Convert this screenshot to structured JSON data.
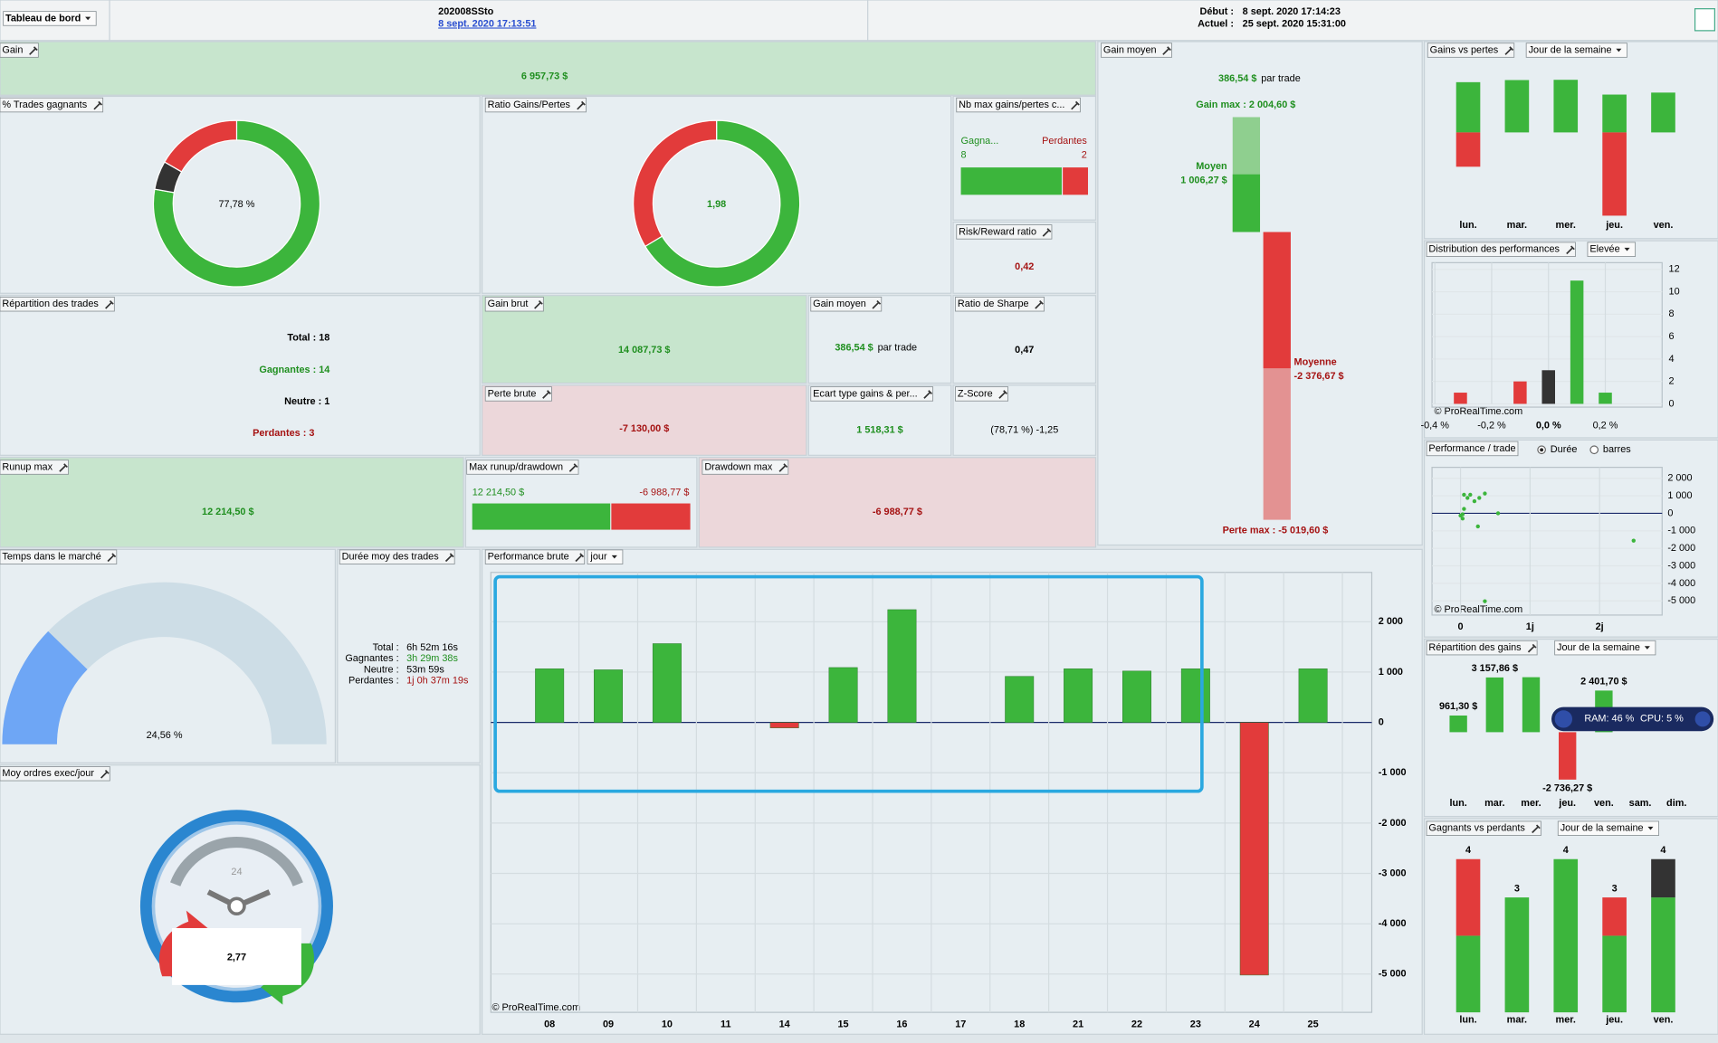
{
  "toolbar": {
    "menu": "Tableau de bord",
    "name": "202008SSto",
    "date_link": "8 sept. 2020 17:13:51",
    "debut_label": "Début :",
    "debut": "8 sept. 2020 17:14:23",
    "actuel_label": "Actuel :",
    "actuel": "25 sept. 2020 15:31:00"
  },
  "gain": {
    "title": "Gain",
    "value": "6 957,73 $"
  },
  "win_rate": {
    "title": "% Trades gagnants",
    "label": "77,78 %",
    "values": [
      77.78,
      5.56,
      16.67
    ],
    "colors": [
      "#3cb53c",
      "#333333",
      "#e23b3b"
    ]
  },
  "ratio": {
    "title": "Ratio Gains/Pertes",
    "label": "1,98",
    "values": [
      66.4,
      33.6
    ],
    "colors": [
      "#3cb53c",
      "#e23b3b"
    ]
  },
  "max_consecutive": {
    "title": "Nb max gains/pertes c...",
    "win_label": "Gagna...",
    "loss_label": "Perdantes",
    "values": [
      8,
      2
    ],
    "colors": [
      "#3cb53c",
      "#e23b3b"
    ]
  },
  "risk_reward": {
    "title": "Risk/Reward ratio",
    "value": "0,42"
  },
  "avg_gain_panel": {
    "title": "Gain moyen",
    "value": "386,54 $",
    "unit": "par trade",
    "max_gain_label": "Gain max : 2 004,60 $",
    "avg_win_title": "Moyen",
    "avg_win_label": "1 006,27 $",
    "avg_loss_title": "Moyenne",
    "avg_loss_label": "-2 376,67 $",
    "max_loss_label": "Perte max : -5 019,60 $",
    "max_gain": 2004.6,
    "avg_win": 1006.27,
    "avg_loss": -2376.67,
    "max_loss": -5019.6
  },
  "gains_vs_losses": {
    "title": "Gains vs pertes",
    "period": "Jour de la semaine",
    "categories": [
      "lun.",
      "mar.",
      "mer.",
      "jeu.",
      "ven."
    ],
    "gains": [
      3030,
      3158,
      3173,
      2283,
      2402
    ],
    "losses": [
      -2069,
      0,
      0,
      -5020,
      0
    ]
  },
  "trades_breakdown": {
    "title": "Répartition des trades",
    "total": "Total : 18",
    "winners": "Gagnantes : 14",
    "neutral": "Neutre : 1",
    "losers": "Perdantes : 3"
  },
  "gross_gain": {
    "title": "Gain brut",
    "value": "14 087,73 $"
  },
  "avg_gain": {
    "title": "Gain moyen",
    "value": "386,54 $",
    "unit": "par trade"
  },
  "sharpe": {
    "title": "Ratio de Sharpe",
    "value": "0,47"
  },
  "gross_loss": {
    "title": "Perte brute",
    "value": "-7 130,00 $"
  },
  "std_dev": {
    "title": "Ecart type gains & per...",
    "value": "1 518,31 $"
  },
  "z_score": {
    "title": "Z-Score",
    "value": "(78,71 %) -1,25"
  },
  "runup": {
    "title": "Runup max",
    "value": "12 214,50 $"
  },
  "runup_drawdown": {
    "title": "Max runup/drawdown",
    "runup_label": "12 214,50 $",
    "drawdown_label": "-6 988,77 $",
    "runup": 12214.5,
    "drawdown": -6988.77
  },
  "drawdown": {
    "title": "Drawdown max",
    "value": "-6 988,77 $"
  },
  "time_in_market": {
    "title": "Temps dans le marché",
    "value": 24.56,
    "label": "24,56 %"
  },
  "avg_duration": {
    "title": "Durée moy des trades",
    "rows": [
      [
        "Total :",
        "6h 52m 16s"
      ],
      [
        "Gagnantes :",
        "3h 29m 38s"
      ],
      [
        "Neutre :",
        "53m 59s"
      ],
      [
        "Perdantes :",
        "1j 0h 37m 19s"
      ]
    ]
  },
  "orders_per_day": {
    "title": "Moy ordres exec/jour",
    "clock": "24",
    "value": "2,77"
  },
  "gross_performance": {
    "title": "Performance brute",
    "period": "jour",
    "watermark": "© ProRealTime.com",
    "chart": {
      "type": "bar",
      "categories": [
        "08",
        "09",
        "10",
        "11",
        "14",
        "15",
        "16",
        "17",
        "18",
        "21",
        "22",
        "23",
        "24",
        "25"
      ],
      "values": [
        1065,
        1045,
        1565,
        0,
        -110,
        1090,
        2240,
        0,
        915,
        1065,
        1020,
        1065,
        -5019.6,
        1065
      ],
      "colors": [
        "#3cb53c",
        "#e23b3b"
      ],
      "ylim": [
        -5760,
        2980
      ],
      "yticks": [
        {
          "value": -5000,
          "label": "-5 000"
        },
        {
          "value": -4000,
          "label": "-4 000"
        },
        {
          "value": -3000,
          "label": "-3 000"
        },
        {
          "value": -2000,
          "label": "-2 000"
        },
        {
          "value": -1000,
          "label": "-1 000"
        },
        0,
        {
          "value": 1000,
          "label": "1 000"
        },
        {
          "value": 2000,
          "label": "2 000"
        }
      ],
      "grid": true
    }
  },
  "distribution": {
    "title": "Distribution des performances",
    "level": "Elevée",
    "watermark": "© ProRealTime.com",
    "chart": {
      "type": "bar",
      "x": [
        -0.31,
        -0.1,
        0,
        0.1,
        0.2
      ],
      "values": [
        1,
        2,
        3,
        11,
        1
      ],
      "colors": [
        "#e23b3b",
        "#e23b3b",
        "#333333",
        "#3cb53c",
        "#3cb53c"
      ],
      "xlim": [
        -0.41,
        0.4
      ],
      "xticks": [
        {
          "value": -0.4,
          "label": "-0,4 %"
        },
        {
          "value": -0.2,
          "label": "-0,2 %"
        },
        {
          "value": 0,
          "label": "0,0 %"
        },
        {
          "value": 0.2,
          "label": "0,2 %"
        }
      ],
      "ylim": [
        0,
        12.6
      ],
      "yticks": [
        0,
        2,
        4,
        6,
        8,
        10,
        12
      ],
      "grid": true
    }
  },
  "trade_performance": {
    "title": "Performance / trade",
    "options": [
      "Durée",
      "barres"
    ],
    "watermark": "© ProRealTime.com",
    "chart": {
      "type": "scatter",
      "x": [
        0.05,
        0.1,
        0.14,
        0.2,
        0.27,
        0.35,
        0.05,
        0.03,
        0.03,
        0.0,
        0.25,
        0.54,
        2.49,
        0.35
      ],
      "y": [
        1060,
        880,
        1060,
        690,
        880,
        1130,
        250,
        -60,
        -300,
        -130,
        -750,
        0,
        -1560,
        -5019.6
      ],
      "color": "#3cb53c",
      "xlim": [
        -0.41,
        2.9
      ],
      "xticks": [
        0,
        {
          "value": 1,
          "label": "1j"
        },
        {
          "value": 2,
          "label": "2j"
        }
      ],
      "ylim": [
        -5810,
        2625
      ],
      "yticks": [
        {
          "value": 2000,
          "label": "2 000"
        },
        {
          "value": 1000,
          "label": "1 000"
        },
        0,
        {
          "value": -1000,
          "label": "-1 000"
        },
        {
          "value": -2000,
          "label": "-2 000"
        },
        {
          "value": -3000,
          "label": "-3 000"
        },
        {
          "value": -4000,
          "label": "-4 000"
        },
        {
          "value": -5000,
          "label": "-5 000"
        }
      ],
      "grid": true
    }
  },
  "gains_by_day": {
    "title": "Répartition des gains",
    "period": "Jour de la semaine",
    "chart": {
      "type": "bar",
      "categories": [
        "lun.",
        "mar.",
        "mer.",
        "jeu.",
        "ven.",
        "sam.",
        "dim."
      ],
      "values": [
        961.3,
        3157.86,
        3173.14,
        -2736.27,
        2401.7,
        null,
        null
      ],
      "value_labels": [
        "961,30 $",
        "3 157,86 $",
        null,
        "-2 736,27 $",
        "2 401,70 $",
        null,
        null
      ],
      "colors": [
        "#3cb53c",
        "#e23b3b"
      ]
    }
  },
  "winners_losers": {
    "title": "Gagnants vs perdants",
    "period": "Jour de la semaine",
    "chart": {
      "type": "stacked_bar",
      "categories": [
        "lun.",
        "mar.",
        "mer.",
        "jeu.",
        "ven."
      ],
      "series": [
        {
          "color": "#3cb53c",
          "values": [
            2,
            3,
            4,
            2,
            3
          ]
        },
        {
          "color": "#333333",
          "values": [
            0,
            0,
            0,
            0,
            1
          ]
        },
        {
          "color": "#e23b3b",
          "values": [
            2,
            0,
            0,
            1,
            0
          ]
        }
      ],
      "totals": [
        4,
        3,
        4,
        3,
        4
      ]
    }
  },
  "system": {
    "ram": "RAM: 46 %",
    "cpu": "CPU: 5 %"
  }
}
